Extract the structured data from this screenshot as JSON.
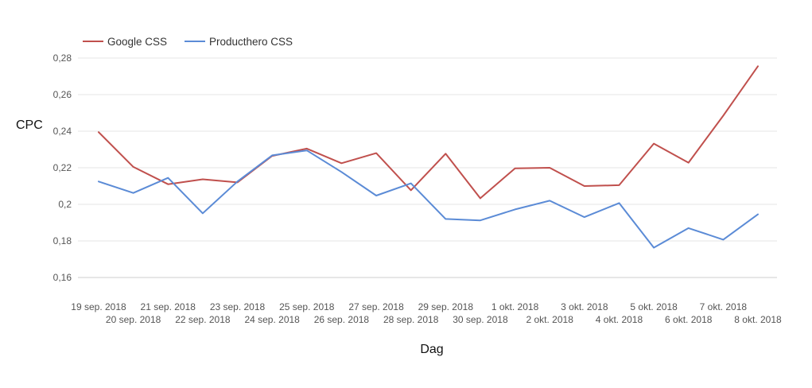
{
  "chart_data": {
    "type": "line",
    "title": "",
    "xlabel": "Dag",
    "ylabel": "CPC",
    "ylim": [
      0.16,
      0.28
    ],
    "yticks": [
      "0,16",
      "0,18",
      "0,2",
      "0,22",
      "0,24",
      "0,26",
      "0,28"
    ],
    "ytick_values": [
      0.16,
      0.18,
      0.2,
      0.22,
      0.24,
      0.26,
      0.28
    ],
    "grid": true,
    "legend_position": "top-left",
    "categories": [
      "19 sep. 2018",
      "20 sep. 2018",
      "21 sep. 2018",
      "22 sep. 2018",
      "23 sep. 2018",
      "24 sep. 2018",
      "25 sep. 2018",
      "26 sep. 2018",
      "27 sep. 2018",
      "28 sep. 2018",
      "29 sep. 2018",
      "30 sep. 2018",
      "1 okt. 2018",
      "2 okt. 2018",
      "3 okt. 2018",
      "4 okt. 2018",
      "5 okt. 2018",
      "6 okt. 2018",
      "7 okt. 2018",
      "8 okt. 2018"
    ],
    "series": [
      {
        "name": "Google CSS",
        "color": "#c0504d",
        "values": [
          0.2395,
          0.2205,
          0.211,
          0.2137,
          0.212,
          0.2265,
          0.2305,
          0.2225,
          0.228,
          0.2077,
          0.2277,
          0.2033,
          0.2197,
          0.22,
          0.21,
          0.2105,
          0.2332,
          0.2228,
          0.2485,
          0.2755
        ]
      },
      {
        "name": "Producthero CSS",
        "color": "#5b8bd6",
        "values": [
          0.2125,
          0.2062,
          0.2145,
          0.1951,
          0.2125,
          0.2268,
          0.2295,
          0.2177,
          0.2048,
          0.2115,
          0.192,
          0.1912,
          0.1972,
          0.202,
          0.193,
          0.2007,
          0.1763,
          0.187,
          0.1807,
          0.1945
        ]
      }
    ]
  }
}
